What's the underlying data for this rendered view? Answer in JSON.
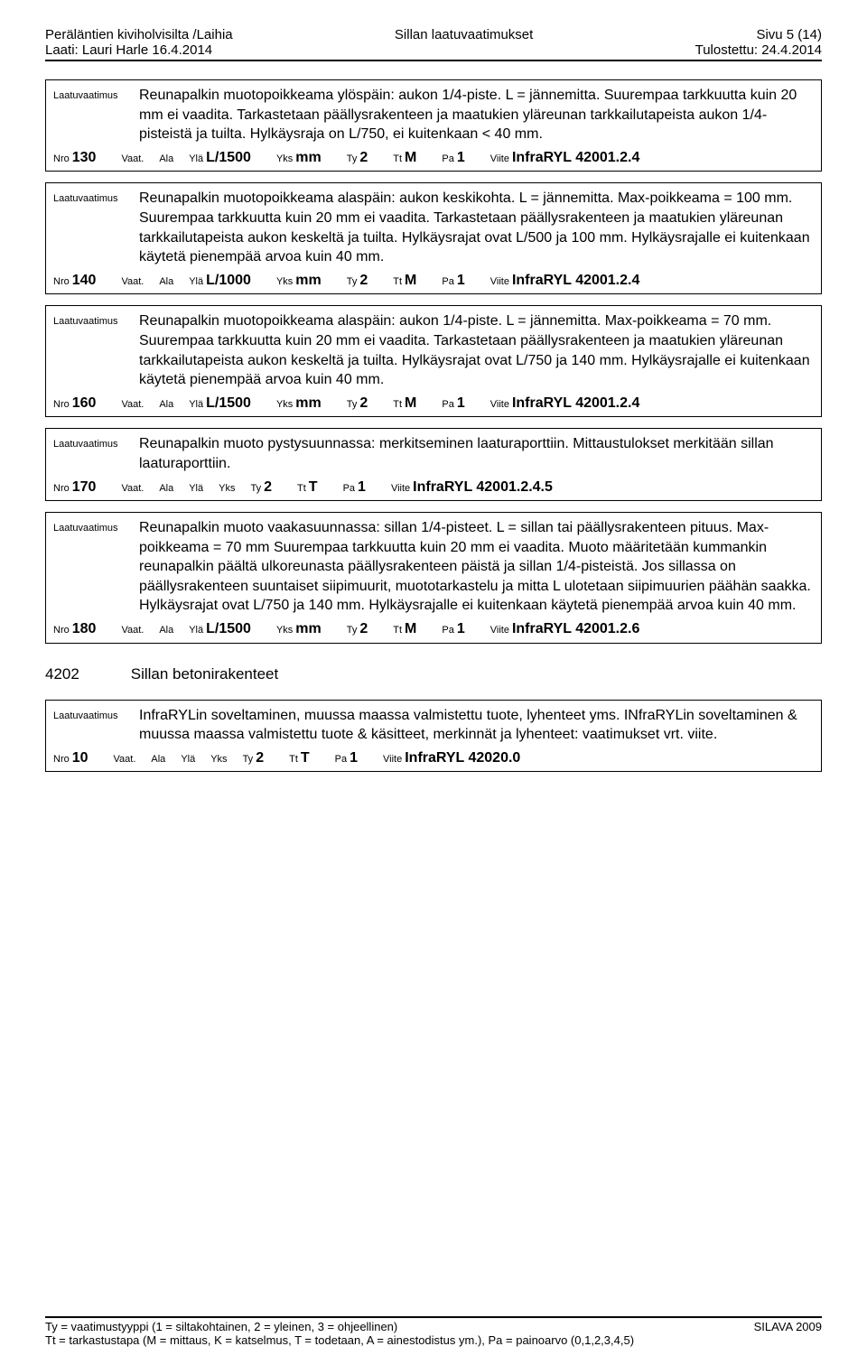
{
  "header": {
    "left_line1": "Peräläntien kiviholvisilta /Laihia",
    "left_line2": "Laati: Lauri Harle 16.4.2014",
    "center_line1": "Sillan laatuvaatimukset",
    "right_line1": "Sivu 5 (14)",
    "right_line2": "Tulostettu: 24.4.2014"
  },
  "entries": [
    {
      "desc_label": "Laatuvaatimus",
      "desc": "Reunapalkin muotopoikkeama ylöspäin: aukon 1/4-piste. L = jännemitta. Suurempaa tarkkuutta kuin 20 mm ei vaadita. Tarkastetaan päällysrakenteen ja maatukien yläreunan tarkkailutapeista aukon 1/4-pisteistä ja tuilta. Hylkäysraja on L/750, ei kuitenkaan < 40 mm.",
      "nro": "130",
      "vaat": "",
      "ala": "",
      "yla": "L/1500",
      "yks": "mm",
      "ty": "2",
      "tt": "M",
      "pa": "1",
      "viite": "InfraRYL 42001.2.4"
    },
    {
      "desc_label": "Laatuvaatimus",
      "desc": "Reunapalkin muotopoikkeama alaspäin: aukon keskikohta. L = jännemitta. Max-poikkeama = 100 mm. Suurempaa tarkkuutta kuin 20 mm ei vaadita. Tarkastetaan päällysrakenteen ja maatukien yläreunan tarkkailutapeista aukon keskeltä ja tuilta. Hylkäysrajat ovat L/500 ja 100 mm. Hylkäysrajalle ei kuitenkaan käytetä pienempää arvoa kuin 40 mm.",
      "nro": "140",
      "vaat": "",
      "ala": "",
      "yla": "L/1000",
      "yks": "mm",
      "ty": "2",
      "tt": "M",
      "pa": "1",
      "viite": "InfraRYL 42001.2.4"
    },
    {
      "desc_label": "Laatuvaatimus",
      "desc": "Reunapalkin muotopoikkeama alaspäin: aukon 1/4-piste. L = jännemitta. Max-poikkeama = 70 mm. Suurempaa tarkkuutta kuin 20 mm ei vaadita. Tarkastetaan päällysrakenteen ja maatukien yläreunan tarkkailutapeista aukon keskeltä ja tuilta. Hylkäysrajat ovat L/750 ja 140 mm. Hylkäysrajalle ei kuitenkaan käytetä pienempää arvoa kuin 40 mm.",
      "nro": "160",
      "vaat": "",
      "ala": "",
      "yla": "L/1500",
      "yks": "mm",
      "ty": "2",
      "tt": "M",
      "pa": "1",
      "viite": "InfraRYL 42001.2.4"
    },
    {
      "desc_label": "Laatuvaatimus",
      "desc": "Reunapalkin muoto pystysuunnassa: merkitseminen laaturaporttiin. Mittaustulokset merkitään sillan laaturaporttiin.",
      "nro": "170",
      "vaat": "",
      "ala": "",
      "yla": "",
      "yks": "",
      "ty": "2",
      "tt": "T",
      "pa": "1",
      "viite": "InfraRYL 42001.2.4.5"
    },
    {
      "desc_label": "Laatuvaatimus",
      "desc": "Reunapalkin muoto vaakasuunnassa: sillan 1/4-pisteet. L = sillan tai päällysrakenteen pituus. Max-poikkeama = 70 mm Suurempaa tarkkuutta kuin 20 mm ei vaadita. Muoto määritetään kummankin reunapalkin päältä ulkoreunasta päällysrakenteen päistä ja sillan 1/4-pisteistä. Jos sillassa on päällysrakenteen suuntaiset siipimuurit, muototarkastelu ja mitta L ulotetaan siipimuurien päähän saakka. Hylkäysrajat ovat L/750 ja 140 mm. Hylkäysrajalle ei kuitenkaan käytetä pienempää arvoa kuin 40 mm.",
      "nro": "180",
      "vaat": "",
      "ala": "",
      "yla": "L/1500",
      "yks": "mm",
      "ty": "2",
      "tt": "M",
      "pa": "1",
      "viite": "InfraRYL 42001.2.6"
    }
  ],
  "section": {
    "num": "4202",
    "title": "Sillan betonirakenteet"
  },
  "entries2": [
    {
      "desc_label": "Laatuvaatimus",
      "desc": "InfraRYLin soveltaminen, muussa maassa valmistettu tuote, lyhenteet yms. INfraRYLin soveltaminen & muussa maassa valmistettu tuote & käsitteet, merkinnät ja lyhenteet: vaatimukset vrt. viite.",
      "nro": "10",
      "vaat": "",
      "ala": "",
      "yla": "",
      "yks": "",
      "ty": "2",
      "tt": "T",
      "pa": "1",
      "viite": "InfraRYL 42020.0"
    }
  ],
  "labels": {
    "nro": "Nro",
    "vaat": "Vaat.",
    "ala": "Ala",
    "yla": "Ylä",
    "yks": "Yks",
    "ty": "Ty",
    "tt": "Tt",
    "pa": "Pa",
    "viite": "Viite"
  },
  "footer": {
    "left_line1": "Ty = vaatimustyyppi (1 = siltakohtainen, 2 = yleinen, 3 = ohjeellinen)",
    "left_line2": "Tt = tarkastustapa (M = mittaus, K = katselmus, T = todetaan, A = ainestodistus ym.), Pa = painoarvo (0,1,2,3,4,5)",
    "right_line1": "SILAVA 2009"
  }
}
